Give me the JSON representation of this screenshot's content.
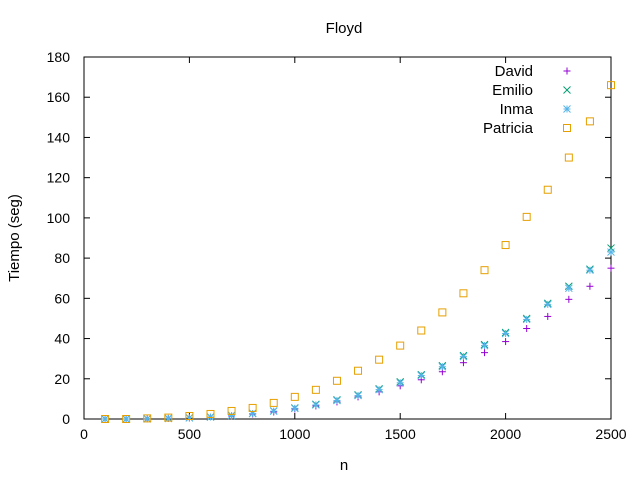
{
  "chart_data": {
    "type": "scatter",
    "title": "Floyd",
    "xlabel": "n",
    "ylabel": "Tiempo (seg)",
    "xlim": [
      0,
      2500
    ],
    "ylim": [
      0,
      180
    ],
    "xticks": [
      0,
      500,
      1000,
      1500,
      2000,
      2500
    ],
    "yticks": [
      0,
      20,
      40,
      60,
      80,
      100,
      120,
      140,
      160,
      180
    ],
    "grid": false,
    "legend_position": "top-right",
    "series": [
      {
        "name": "David",
        "marker": "plus",
        "color": "#9400d3",
        "x": [
          100,
          200,
          300,
          400,
          500,
          600,
          700,
          800,
          900,
          1000,
          1100,
          1200,
          1300,
          1400,
          1500,
          1600,
          1700,
          1800,
          1900,
          2000,
          2100,
          2200,
          2300,
          2400,
          2500
        ],
        "y": [
          0,
          0,
          0.1,
          0.3,
          0.5,
          1,
          1.5,
          2.5,
          3.5,
          5,
          6.5,
          8.5,
          11,
          13.5,
          16.5,
          19.5,
          23.5,
          28,
          33,
          38.5,
          45,
          51,
          59.5,
          66,
          75
        ]
      },
      {
        "name": "Emilio",
        "marker": "x",
        "color": "#009e73",
        "x": [
          100,
          200,
          300,
          400,
          500,
          600,
          700,
          800,
          900,
          1000,
          1100,
          1200,
          1300,
          1400,
          1500,
          1600,
          1700,
          1800,
          1900,
          2000,
          2100,
          2200,
          2300,
          2400,
          2500
        ],
        "y": [
          0,
          0,
          0.1,
          0.3,
          0.6,
          1,
          1.8,
          2.8,
          4,
          5.5,
          7.3,
          9.5,
          12,
          15,
          18.5,
          22,
          26.5,
          31.5,
          37,
          43,
          50,
          57.5,
          66,
          74.5,
          85
        ]
      },
      {
        "name": "Inma",
        "marker": "star",
        "color": "#56b4e9",
        "x": [
          100,
          200,
          300,
          400,
          500,
          600,
          700,
          800,
          900,
          1000,
          1100,
          1200,
          1300,
          1400,
          1500,
          1600,
          1700,
          1800,
          1900,
          2000,
          2100,
          2200,
          2300,
          2400,
          2500
        ],
        "y": [
          0,
          0,
          0.1,
          0.3,
          0.6,
          1,
          1.7,
          2.7,
          3.9,
          5.3,
          7,
          9.2,
          11.7,
          14.6,
          18,
          21.6,
          26,
          31,
          36.5,
          42.5,
          49.5,
          57,
          65,
          74,
          83
        ]
      },
      {
        "name": "Patricia",
        "marker": "square",
        "color": "#e69f00",
        "x": [
          100,
          200,
          300,
          400,
          500,
          600,
          700,
          800,
          900,
          1000,
          1100,
          1200,
          1300,
          1400,
          1500,
          1600,
          1700,
          1800,
          1900,
          2000,
          2100,
          2200,
          2300,
          2400,
          2500
        ],
        "y": [
          0,
          0,
          0.3,
          0.7,
          1.5,
          2.5,
          4,
          5.5,
          8,
          11,
          14.5,
          19,
          24,
          29.5,
          36.5,
          44,
          53,
          62.5,
          74,
          86.5,
          100.5,
          114,
          130,
          148,
          166
        ]
      }
    ]
  }
}
